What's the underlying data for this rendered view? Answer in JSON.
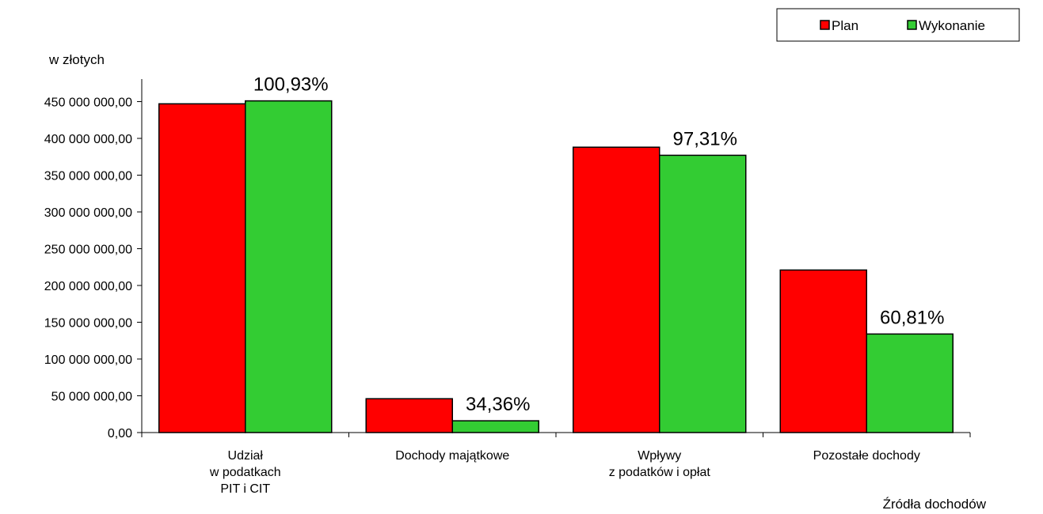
{
  "chart_data": {
    "type": "bar",
    "categories": [
      [
        "Udział",
        "w podatkach",
        "PIT i CIT"
      ],
      [
        "Dochody majątkowe"
      ],
      [
        "Wpływy",
        "z podatków i opłat"
      ],
      [
        "Pozostałe dochody"
      ]
    ],
    "series": [
      {
        "name": "Plan",
        "color": "#ff0000",
        "values": [
          447000000,
          46000000,
          388000000,
          221000000
        ]
      },
      {
        "name": "Wykonanie",
        "color": "#33cc33",
        "values": [
          451000000,
          16000000,
          377000000,
          134000000
        ]
      }
    ],
    "data_labels": [
      "100,93%",
      "34,36%",
      "97,31%",
      "60,81%"
    ],
    "ylabel": "w złotych",
    "xlabel": "Źródła dochodów",
    "ylim": [
      0,
      480000000
    ],
    "y_ticks": [
      {
        "value": 0,
        "label": "0,00"
      },
      {
        "value": 50000000,
        "label": "50 000 000,00"
      },
      {
        "value": 100000000,
        "label": "100 000 000,00"
      },
      {
        "value": 150000000,
        "label": "150 000 000,00"
      },
      {
        "value": 200000000,
        "label": "200 000 000,00"
      },
      {
        "value": 250000000,
        "label": "250 000 000,00"
      },
      {
        "value": 300000000,
        "label": "300 000 000,00"
      },
      {
        "value": 350000000,
        "label": "350 000 000,00"
      },
      {
        "value": 400000000,
        "label": "400 000 000,00"
      },
      {
        "value": 450000000,
        "label": "450 000 000,00"
      }
    ],
    "grid": false,
    "legend_position": "top-right"
  }
}
